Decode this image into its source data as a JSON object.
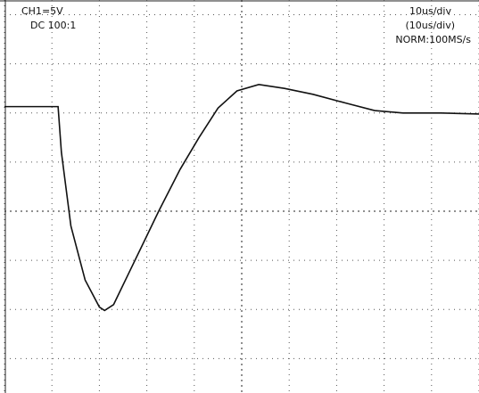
{
  "chart_data": {
    "type": "line",
    "annotations": [
      "CH1=5V",
      "DC  100:1",
      "10us/div",
      "(10us/div)",
      "NORM:100MS/s"
    ],
    "x": [
      -5,
      -3.87,
      -3.8,
      -3.6,
      -3.3,
      -3.0,
      -2.89,
      -2.7,
      -2.4,
      -2.0,
      -1.75,
      -1.3,
      -0.9,
      -0.5,
      -0.1,
      0.36,
      0.9,
      1.5,
      2.2,
      2.8,
      3.4,
      4.2,
      5
    ],
    "series": [
      {
        "color": "#111111",
        "values": [
          2.13,
          2.13,
          1.2,
          -0.3,
          -1.4,
          -1.95,
          -2.02,
          -1.9,
          -1.3,
          -0.5,
          0,
          0.85,
          1.5,
          2.1,
          2.45,
          2.58,
          2.5,
          2.38,
          2.2,
          2.05,
          2.0,
          2.0,
          1.98
        ]
      }
    ],
    "xlim": [
      -5,
      5
    ],
    "ylim": [
      -3.7,
      4.3
    ],
    "xticks": [
      -5,
      -4,
      -3,
      -2,
      -1,
      0,
      1,
      2,
      3,
      4,
      5
    ],
    "yticks": [
      -3,
      -2,
      -1,
      0,
      1,
      2,
      3,
      4
    ],
    "grid": true
  }
}
